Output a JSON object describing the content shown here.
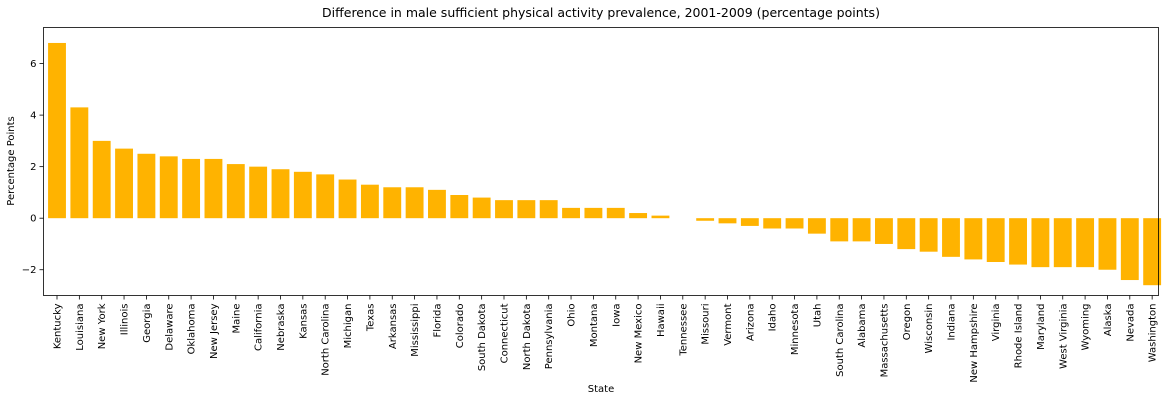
{
  "chart_data": {
    "type": "bar",
    "title": "Difference in male sufficient physical activity prevalence, 2001-2009 (percentage points)",
    "xlabel": "State",
    "ylabel": "Percentage Points",
    "ylim": [
      -3.0,
      7.4
    ],
    "yticks": [
      -2,
      0,
      2,
      4,
      6
    ],
    "ytick_labels": [
      "−2",
      "0",
      "2",
      "4",
      "6"
    ],
    "grid": false,
    "bar_color": "#ffb300",
    "categories": [
      "Kentucky",
      "Louisiana",
      "New York",
      "Illinois",
      "Georgia",
      "Delaware",
      "Oklahoma",
      "New Jersey",
      "Maine",
      "California",
      "Nebraska",
      "Kansas",
      "North Carolina",
      "Michigan",
      "Texas",
      "Arkansas",
      "Mississippi",
      "Florida",
      "Colorado",
      "South Dakota",
      "Connecticut",
      "North Dakota",
      "Pennsylvania",
      "Ohio",
      "Montana",
      "Iowa",
      "New Mexico",
      "Hawaii",
      "Tennessee",
      "Missouri",
      "Vermont",
      "Arizona",
      "Idaho",
      "Minnesota",
      "Utah",
      "South Carolina",
      "Alabama",
      "Massachusetts",
      "Oregon",
      "Wisconsin",
      "Indiana",
      "New Hampshire",
      "Virginia",
      "Rhode Island",
      "Maryland",
      "West Virginia",
      "Wyoming",
      "Alaska",
      "Nevada",
      "Washington"
    ],
    "values": [
      6.8,
      4.3,
      3.0,
      2.7,
      2.5,
      2.4,
      2.3,
      2.3,
      2.1,
      2.0,
      1.9,
      1.8,
      1.7,
      1.5,
      1.3,
      1.2,
      1.2,
      1.1,
      0.9,
      0.8,
      0.7,
      0.7,
      0.7,
      0.4,
      0.4,
      0.4,
      0.2,
      0.1,
      0.0,
      -0.1,
      -0.2,
      -0.3,
      -0.4,
      -0.4,
      -0.6,
      -0.9,
      -0.9,
      -1.0,
      -1.2,
      -1.3,
      -1.5,
      -1.6,
      -1.7,
      -1.8,
      -1.9,
      -1.9,
      -1.9,
      -2.0,
      -2.4,
      -2.6
    ]
  }
}
